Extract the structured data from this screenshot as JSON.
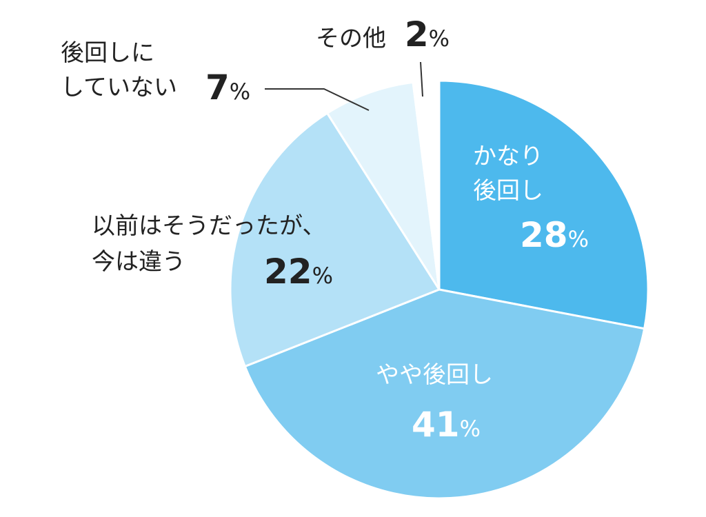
{
  "chart_data": {
    "type": "pie",
    "start_angle": "top, clockwise",
    "slices": [
      {
        "label": "かなり\n後回し",
        "label_lines": [
          "かなり",
          "後回し"
        ],
        "value": 28,
        "color": "#4db9ed"
      },
      {
        "label": "やや後回し",
        "label_lines": [
          "やや後回し"
        ],
        "value": 41,
        "color": "#80ccf1"
      },
      {
        "label": "以前はそうだったが、今は違う",
        "label_lines": [
          "以前はそうだったが、",
          "今は違う"
        ],
        "value": 22,
        "color": "#b4e1f7"
      },
      {
        "label": "後回しにしていない",
        "label_lines": [
          "後回しに",
          "していない"
        ],
        "value": 7,
        "color": "#e3f4fc"
      },
      {
        "label": "その他",
        "label_lines": [
          "その他"
        ],
        "value": 2,
        "color": "#ffffff"
      }
    ],
    "unit": "%"
  }
}
